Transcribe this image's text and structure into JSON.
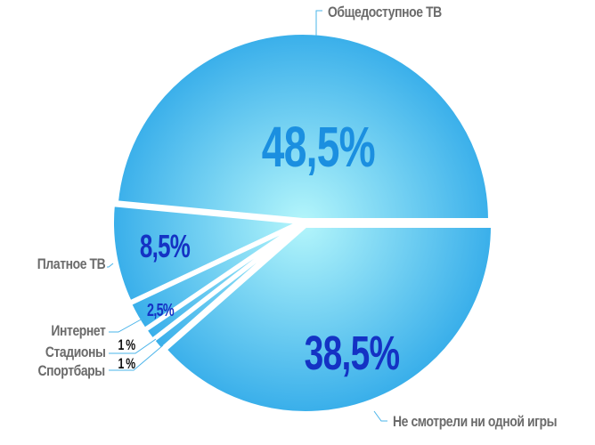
{
  "chart_data": {
    "type": "pie",
    "slices": [
      {
        "label": "Общедоступное ТВ",
        "value": 48.5,
        "value_label": "48,5%"
      },
      {
        "label": "Платное ТВ",
        "value": 8.5,
        "value_label": "8,5%"
      },
      {
        "label": "Интернет",
        "value": 2.5,
        "value_label": "2,5%"
      },
      {
        "label": "Стадионы",
        "value": 1,
        "value_label": "1 %"
      },
      {
        "label": "Спортбары",
        "value": 1,
        "value_label": "1 %"
      },
      {
        "label": "Не смотрели ни одной игры",
        "value": 38.5,
        "value_label": "38,5%"
      }
    ],
    "colors": {
      "center": "#b4f6fb",
      "edge": "#38aeea",
      "label_text": "#6b6b6b",
      "leader": "#4ab4ea",
      "pct_top": "#1b8fe0",
      "pct_dark": "#1432c4",
      "pct_small": "#111111"
    }
  }
}
